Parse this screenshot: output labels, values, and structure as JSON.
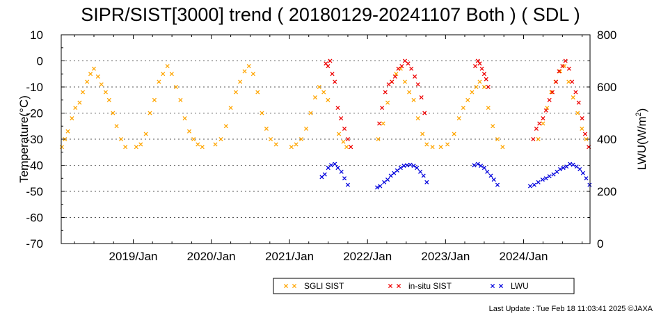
{
  "chart_data": {
    "type": "scatter",
    "title": "SIPR/SIST[3000] trend ( 20180129-20241107 Both ) ( SDL )",
    "ylabel_left": "Temperature(°C)",
    "ylabel_right_main": "LWU(W/m",
    "ylabel_right_sup": "2",
    "ylabel_right_tail": ")",
    "x_range": [
      "2018-01-29",
      "2024-11-07"
    ],
    "ylim_left": [
      -70,
      10
    ],
    "ylim_right": [
      0,
      800
    ],
    "yticks_left": [
      10,
      0,
      -10,
      -20,
      -30,
      -40,
      -50,
      -60,
      -70
    ],
    "yticks_right": [
      800,
      600,
      400,
      200,
      0
    ],
    "xticks": [
      "2019/Jan",
      "2020/Jan",
      "2021/Jan",
      "2022/Jan",
      "2023/Jan",
      "2024/Jan"
    ],
    "grid": true,
    "legend_position": "bottom-right",
    "series": [
      {
        "name": "SGLI SIST",
        "color": "#ffa500",
        "axis": "left",
        "x": [
          "2018-02-01",
          "2018-02-15",
          "2018-03-01",
          "2018-03-20",
          "2018-04-05",
          "2018-04-25",
          "2018-05-10",
          "2018-05-30",
          "2018-06-15",
          "2018-07-01",
          "2018-07-20",
          "2018-08-05",
          "2018-08-25",
          "2018-09-10",
          "2018-09-28",
          "2018-10-15",
          "2018-11-05",
          "2018-11-25",
          "2019-01-15",
          "2019-02-05",
          "2019-03-01",
          "2019-03-20",
          "2019-04-10",
          "2019-05-01",
          "2019-05-20",
          "2019-06-10",
          "2019-06-30",
          "2019-07-20",
          "2019-08-10",
          "2019-08-30",
          "2019-09-20",
          "2019-10-10",
          "2019-10-30",
          "2019-11-20",
          "2020-01-20",
          "2020-02-15",
          "2020-03-10",
          "2020-04-01",
          "2020-04-25",
          "2020-05-15",
          "2020-06-05",
          "2020-06-25",
          "2020-07-15",
          "2020-08-05",
          "2020-08-25",
          "2020-09-15",
          "2020-10-05",
          "2020-10-30",
          "2021-01-10",
          "2021-02-01",
          "2021-02-25",
          "2021-03-20",
          "2021-04-10",
          "2021-05-01",
          "2021-05-20",
          "2021-06-10",
          "2021-06-30",
          "2021-08-20",
          "2021-09-10",
          "2021-09-25",
          "2022-02-20",
          "2022-03-15",
          "2022-04-05",
          "2022-04-25",
          "2022-05-15",
          "2022-06-05",
          "2022-06-25",
          "2022-07-15",
          "2022-08-05",
          "2022-08-25",
          "2022-09-15",
          "2022-10-05",
          "2022-11-01",
          "2022-12-10",
          "2023-01-10",
          "2023-02-10",
          "2023-03-05",
          "2023-03-25",
          "2023-04-15",
          "2023-05-05",
          "2023-05-25",
          "2023-06-10",
          "2023-07-01",
          "2023-07-20",
          "2023-08-10",
          "2023-09-01",
          "2023-09-25",
          "2024-03-10",
          "2024-04-01",
          "2024-04-20",
          "2024-05-10",
          "2024-05-30",
          "2024-06-20",
          "2024-07-10",
          "2024-07-30",
          "2024-08-20",
          "2024-09-10",
          "2024-09-30",
          "2024-10-20"
        ],
        "y": [
          -33,
          -30,
          -27,
          -22,
          -18,
          -16,
          -12,
          -8,
          -5,
          -3,
          -6,
          -9,
          -12,
          -15,
          -20,
          -25,
          -30,
          -33,
          -33,
          -32,
          -28,
          -20,
          -15,
          -8,
          -5,
          -2,
          -5,
          -10,
          -15,
          -22,
          -27,
          -30,
          -32,
          -33,
          -32,
          -30,
          -25,
          -18,
          -12,
          -8,
          -4,
          -2,
          -5,
          -12,
          -20,
          -26,
          -30,
          -32,
          -33,
          -32,
          -30,
          -26,
          -20,
          -14,
          -10,
          -12,
          -15,
          -28,
          -31,
          -33,
          -30,
          -24,
          -16,
          -8,
          -5,
          -3,
          -8,
          -12,
          -15,
          -22,
          -28,
          -32,
          -33,
          -33,
          -32,
          -28,
          -22,
          -18,
          -15,
          -12,
          -10,
          -8,
          -10,
          -18,
          -25,
          -30,
          -33,
          -30,
          -24,
          -18,
          -12,
          -8,
          -4,
          -2,
          -8,
          -14,
          -20,
          -26,
          -30
        ]
      },
      {
        "name": "in-situ SIST",
        "color": "#ee0000",
        "axis": "left",
        "x": [
          "2021-06-20",
          "2021-06-30",
          "2021-07-10",
          "2021-07-20",
          "2021-08-01",
          "2021-08-15",
          "2021-08-30",
          "2021-09-15",
          "2021-10-01",
          "2021-10-15",
          "2022-02-25",
          "2022-03-10",
          "2022-03-25",
          "2022-04-10",
          "2022-04-25",
          "2022-05-10",
          "2022-05-25",
          "2022-06-10",
          "2022-06-25",
          "2022-07-10",
          "2022-07-25",
          "2022-08-10",
          "2022-08-25",
          "2022-09-10",
          "2022-09-25",
          "2023-05-20",
          "2023-06-01",
          "2023-06-10",
          "2023-06-20",
          "2023-07-01",
          "2023-07-10",
          "2023-07-20",
          "2024-02-15",
          "2024-03-01",
          "2024-03-15",
          "2024-04-01",
          "2024-04-15",
          "2024-05-01",
          "2024-05-15",
          "2024-06-01",
          "2024-06-15",
          "2024-07-01",
          "2024-07-15",
          "2024-08-01",
          "2024-08-15",
          "2024-09-01",
          "2024-09-15",
          "2024-10-01",
          "2024-10-15",
          "2024-11-01"
        ],
        "y": [
          -1,
          -2,
          0,
          -5,
          -8,
          -18,
          -22,
          -26,
          -30,
          -33,
          -24,
          -18,
          -12,
          -9,
          -8,
          -6,
          -3,
          -2,
          0,
          -1,
          -3,
          -6,
          -9,
          -14,
          -20,
          -2,
          0,
          -1,
          -3,
          -5,
          -7,
          -10,
          -30,
          -26,
          -24,
          -22,
          -19,
          -15,
          -12,
          -8,
          -4,
          -2,
          0,
          -3,
          -8,
          -12,
          -16,
          -22,
          -28,
          -33
        ]
      },
      {
        "name": "LWU",
        "color": "#0000dd",
        "axis": "right",
        "x": [
          "2021-06-01",
          "2021-06-15",
          "2021-07-01",
          "2021-07-15",
          "2021-08-01",
          "2021-08-15",
          "2021-09-01",
          "2021-09-15",
          "2021-10-01",
          "2022-02-15",
          "2022-03-01",
          "2022-03-20",
          "2022-04-05",
          "2022-04-20",
          "2022-05-05",
          "2022-05-20",
          "2022-06-05",
          "2022-06-20",
          "2022-07-05",
          "2022-07-20",
          "2022-08-05",
          "2022-08-20",
          "2022-09-05",
          "2022-09-20",
          "2022-10-05",
          "2023-05-15",
          "2023-06-01",
          "2023-06-15",
          "2023-07-01",
          "2023-07-15",
          "2023-08-01",
          "2023-08-15",
          "2023-09-01",
          "2024-02-01",
          "2024-02-20",
          "2024-03-10",
          "2024-03-30",
          "2024-04-15",
          "2024-05-01",
          "2024-05-20",
          "2024-06-05",
          "2024-06-20",
          "2024-07-05",
          "2024-07-20",
          "2024-08-05",
          "2024-08-20",
          "2024-09-05",
          "2024-09-20",
          "2024-10-05",
          "2024-10-20",
          "2024-11-05"
        ],
        "values": [
          255,
          265,
          290,
          300,
          305,
          290,
          275,
          250,
          225,
          215,
          220,
          235,
          245,
          260,
          270,
          280,
          290,
          298,
          300,
          302,
          298,
          290,
          275,
          260,
          235,
          300,
          305,
          298,
          290,
          275,
          260,
          245,
          225,
          220,
          225,
          235,
          245,
          250,
          258,
          265,
          275,
          285,
          290,
          295,
          305,
          302,
          295,
          285,
          270,
          250,
          225
        ]
      }
    ],
    "legend": [
      "SGLI SIST",
      "in-situ SIST",
      "LWU"
    ]
  },
  "footer": "Last Update : Tue Feb 18 11:03:41 2025 ©JAXA"
}
